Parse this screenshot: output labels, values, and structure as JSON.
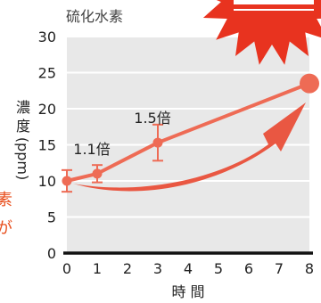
{
  "chart_data": {
    "type": "line",
    "title": "硫化水素",
    "xlabel": "時 間",
    "ylabel": [
      "濃",
      "度",
      "(ppm)"
    ],
    "x": [
      0,
      1,
      3,
      8
    ],
    "series": [
      {
        "values": [
          10,
          11,
          15.3,
          23.5
        ],
        "error": [
          1.5,
          1.2,
          2.5,
          null
        ],
        "color": "#ee6b55"
      }
    ],
    "xlim": [
      0,
      8
    ],
    "ylim": [
      0,
      30
    ],
    "xticks": [
      "0",
      "1",
      "2",
      "3",
      "4",
      "5",
      "6",
      "7",
      "8"
    ],
    "yticks": [
      "0",
      "5",
      "10",
      "15",
      "20",
      "25",
      "30"
    ],
    "grid": true,
    "legend": "none",
    "annotations": [
      {
        "text": "1.1倍",
        "x": 1,
        "y": 11
      },
      {
        "text": "1.5倍",
        "x": 3,
        "y": 15.3
      }
    ],
    "colors": {
      "plot_background": "#e8e8e8",
      "gridline": "#ffffff",
      "line": "#ee6b55",
      "arrow": "#e84a33",
      "burst": "#e8331f",
      "burst_stripe": "#ffffff",
      "side_text": "#e8501f"
    }
  },
  "side_text": [
    "素",
    "が"
  ]
}
